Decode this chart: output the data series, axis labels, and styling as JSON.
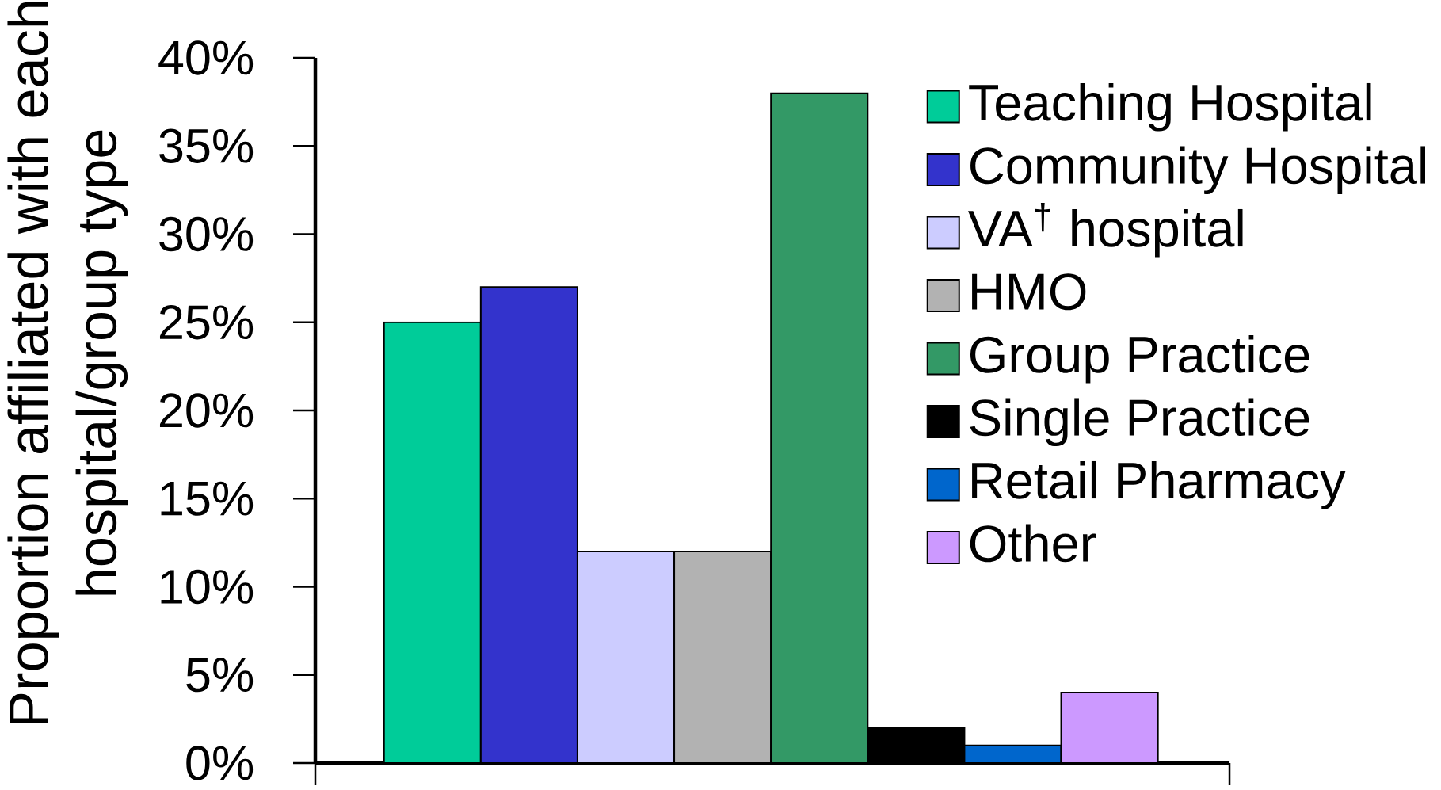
{
  "chart_data": {
    "type": "bar",
    "ylabel": "Proportion affiliated with each hospital/group type",
    "categories": [
      null
    ],
    "series": [
      {
        "name": "Teaching Hospital",
        "color": "#00cc99",
        "values": [
          25
        ]
      },
      {
        "name": "Community Hospital",
        "color": "#3333cc",
        "values": [
          27
        ]
      },
      {
        "name": "VA$^{†}$ hospital",
        "color": "#ccccff",
        "values": [
          12
        ]
      },
      {
        "name": "HMO",
        "color": "#b2b2b2",
        "values": [
          12
        ]
      },
      {
        "name": "Group Practice",
        "color": "#339966",
        "values": [
          38
        ]
      },
      {
        "name": "Single Practice",
        "color": "#000000",
        "values": [
          2
        ]
      },
      {
        "name": "Retail Pharmacy",
        "color": "#0066cc",
        "values": [
          1
        ]
      },
      {
        "name": "Other",
        "color": "#cc99ff",
        "values": [
          4
        ]
      }
    ],
    "ylim": [
      0,
      40
    ],
    "yticks": [
      {
        "value": 0,
        "label": "0%"
      },
      {
        "value": 5,
        "label": "5%"
      },
      {
        "value": 10,
        "label": "10%"
      },
      {
        "value": 15,
        "label": "15%"
      },
      {
        "value": 20,
        "label": "20%"
      },
      {
        "value": 25,
        "label": "25%"
      },
      {
        "value": 30,
        "label": "30%"
      },
      {
        "value": 35,
        "label": "35%"
      },
      {
        "value": 40,
        "label": "40%"
      }
    ],
    "legend": "top right"
  }
}
